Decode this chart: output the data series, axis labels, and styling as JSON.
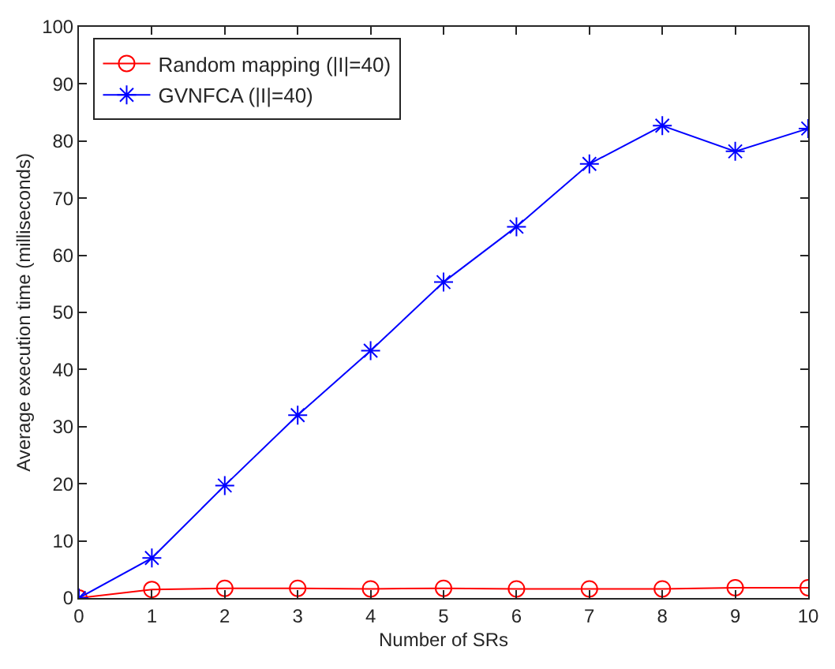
{
  "chart_data": {
    "type": "line",
    "xlabel": "Number of SRs",
    "ylabel": "Average execution time (milliseconds)",
    "x": [
      0,
      1,
      2,
      3,
      4,
      5,
      6,
      7,
      8,
      9,
      10
    ],
    "series": [
      {
        "name": "Random mapping (|I|=40)",
        "color": "#ff0000",
        "marker": "circle",
        "values": [
          0,
          1.5,
          1.7,
          1.7,
          1.6,
          1.7,
          1.6,
          1.6,
          1.6,
          1.8,
          1.8
        ]
      },
      {
        "name": "GVNFCA (|I|=40)",
        "color": "#0000ff",
        "marker": "cross",
        "values": [
          0,
          7,
          19.7,
          32,
          43.3,
          55.3,
          65,
          76,
          82.7,
          78.2,
          82.2
        ]
      }
    ],
    "xlim": [
      0,
      10
    ],
    "xticks": [
      0,
      1,
      2,
      3,
      4,
      5,
      6,
      7,
      8,
      9,
      10
    ],
    "ylim": [
      0,
      100
    ],
    "yticks": [
      0,
      10,
      20,
      30,
      40,
      50,
      60,
      70,
      80,
      90,
      100
    ],
    "legend": "top left",
    "line_style": "solid"
  }
}
